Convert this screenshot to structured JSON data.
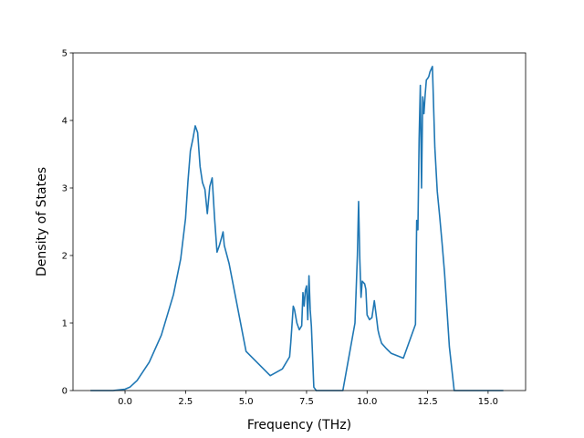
{
  "chart_data": {
    "type": "line",
    "title": "",
    "xlabel": "Frequency (THz)",
    "ylabel": "Density of States",
    "xlim": [
      -2.15,
      16.55
    ],
    "ylim": [
      0,
      5
    ],
    "xticks": [
      0.0,
      2.5,
      5.0,
      7.5,
      10.0,
      12.5,
      15.0
    ],
    "xtick_labels": [
      "0.0",
      "2.5",
      "5.0",
      "7.5",
      "10.0",
      "12.5",
      "15.0"
    ],
    "yticks": [
      0,
      1,
      2,
      3,
      4,
      5
    ],
    "ytick_labels": [
      "0",
      "1",
      "2",
      "3",
      "4",
      "5"
    ],
    "grid": false,
    "legend": "none",
    "series": [
      {
        "color": "#1f77b4",
        "x": [
          -1.4,
          -0.5,
          0.0,
          0.2,
          0.5,
          1.0,
          1.5,
          2.0,
          2.3,
          2.5,
          2.6,
          2.7,
          2.8,
          2.9,
          3.0,
          3.1,
          3.2,
          3.3,
          3.4,
          3.5,
          3.6,
          3.7,
          3.8,
          3.9,
          4.0,
          4.05,
          4.1,
          4.3,
          5.0,
          6.0,
          6.5,
          6.8,
          6.85,
          6.9,
          6.95,
          7.0,
          7.1,
          7.2,
          7.3,
          7.35,
          7.4,
          7.45,
          7.5,
          7.55,
          7.6,
          7.65,
          7.7,
          7.8,
          7.9,
          8.05,
          8.1,
          8.5,
          9.0,
          9.5,
          9.6,
          9.65,
          9.7,
          9.75,
          9.8,
          9.85,
          9.9,
          9.95,
          10.0,
          10.1,
          10.2,
          10.3,
          10.4,
          10.45,
          10.5,
          10.6,
          10.8,
          11.0,
          11.5,
          12.0,
          12.05,
          12.1,
          12.15,
          12.2,
          12.25,
          12.3,
          12.35,
          12.4,
          12.45,
          12.5,
          12.55,
          12.6,
          12.7,
          12.8,
          12.9,
          13.0,
          13.1,
          13.2,
          13.3,
          13.4,
          13.6,
          13.8,
          14.0,
          14.3,
          14.4,
          14.5,
          15.0,
          15.6
        ],
        "y": [
          0,
          0,
          0.02,
          0.05,
          0.15,
          0.42,
          0.82,
          1.42,
          1.95,
          2.55,
          3.1,
          3.55,
          3.72,
          3.92,
          3.82,
          3.32,
          3.08,
          2.98,
          2.62,
          3.02,
          3.15,
          2.55,
          2.05,
          2.15,
          2.28,
          2.35,
          2.15,
          1.88,
          0.58,
          0.22,
          0.32,
          0.5,
          0.72,
          0.98,
          1.25,
          1.2,
          1.0,
          0.9,
          0.96,
          1.45,
          1.25,
          1.48,
          1.55,
          1.05,
          1.7,
          1.2,
          0.95,
          0.05,
          0,
          0,
          0,
          0,
          0,
          1.0,
          2.0,
          2.8,
          1.95,
          1.38,
          1.62,
          1.6,
          1.58,
          1.5,
          1.12,
          1.05,
          1.08,
          1.33,
          1.05,
          0.9,
          0.82,
          0.7,
          0.62,
          0.55,
          0.48,
          0.98,
          2.52,
          2.38,
          3.72,
          4.52,
          3.0,
          4.35,
          4.1,
          4.38,
          4.6,
          4.62,
          4.65,
          4.72,
          4.8,
          3.6,
          2.95,
          2.58,
          2.18,
          1.75,
          1.2,
          0.65,
          0.0,
          0,
          0,
          0,
          0,
          0,
          0,
          0
        ]
      }
    ]
  }
}
